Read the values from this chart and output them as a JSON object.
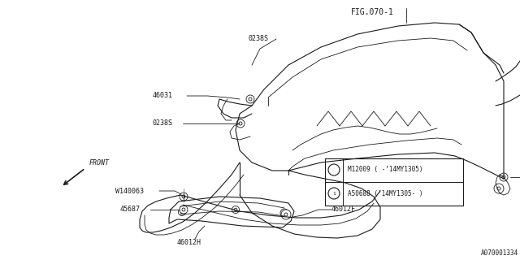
{
  "bg_color": "#ffffff",
  "line_color": "#1a1a1a",
  "title": "FIG.070-1",
  "doc_id": "A070001334",
  "legend_row1": "M12009 ( -’14MY1305)",
  "legend_row2": "A50688 (’14MY1305- )"
}
